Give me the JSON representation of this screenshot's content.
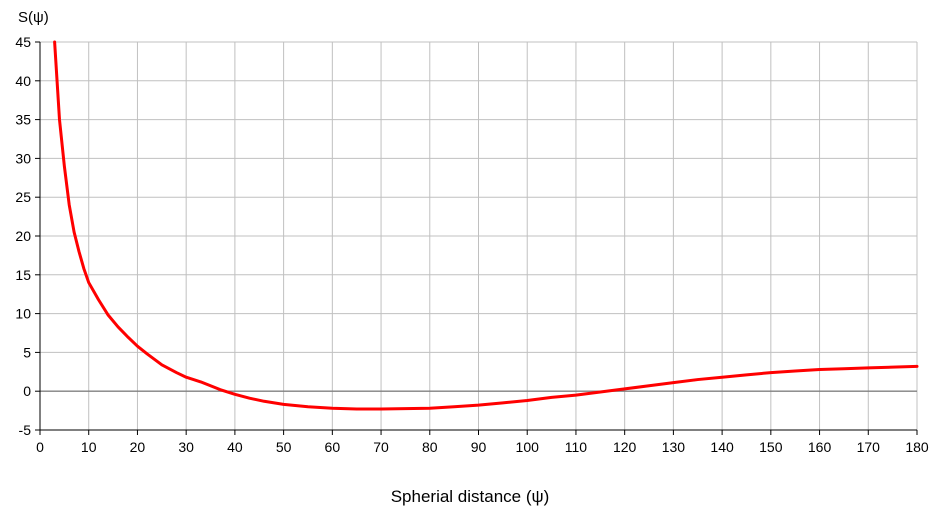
{
  "chart_data": {
    "type": "line",
    "title": "",
    "ylabel": "S(ψ)",
    "xlabel": "Spherial distance (ψ)",
    "xlim": [
      0,
      180
    ],
    "ylim": [
      -5,
      45
    ],
    "x_ticks": [
      0,
      10,
      20,
      30,
      40,
      50,
      60,
      70,
      80,
      90,
      100,
      110,
      120,
      130,
      140,
      150,
      160,
      170,
      180
    ],
    "y_ticks": [
      -5,
      0,
      5,
      10,
      15,
      20,
      25,
      30,
      35,
      40,
      45
    ],
    "x_tick_labels": [
      "0",
      "10",
      "20",
      "30",
      "40",
      "50",
      "60",
      "70",
      "80",
      "90",
      "100",
      "110",
      "120",
      "130",
      "140",
      "150",
      "160",
      "170",
      "180"
    ],
    "y_tick_labels": [
      "-5",
      "0",
      "5",
      "10",
      "15",
      "20",
      "25",
      "30",
      "35",
      "40",
      "45"
    ],
    "grid": true,
    "zero_line": true,
    "colors": {
      "series": "#ff0000",
      "grid": "#c0c0c0",
      "zero_line": "#808080",
      "axis": "#000000"
    },
    "series": [
      {
        "x": [
          3,
          4,
          5,
          6,
          7,
          8,
          9,
          10,
          12,
          14,
          16,
          18,
          20,
          22,
          25,
          28,
          30,
          33,
          35,
          37,
          40,
          43,
          46,
          50,
          55,
          60,
          65,
          70,
          75,
          80,
          85,
          90,
          95,
          100,
          105,
          110,
          115,
          120,
          125,
          130,
          135,
          140,
          145,
          150,
          155,
          160,
          165,
          170,
          175,
          180
        ],
        "y": [
          45,
          35,
          29,
          24,
          20.5,
          18,
          15.8,
          14,
          11.8,
          9.8,
          8.3,
          7,
          5.8,
          4.8,
          3.4,
          2.4,
          1.8,
          1.2,
          0.7,
          0.2,
          -0.4,
          -0.9,
          -1.3,
          -1.7,
          -2.0,
          -2.2,
          -2.3,
          -2.3,
          -2.25,
          -2.2,
          -2.0,
          -1.8,
          -1.5,
          -1.2,
          -0.8,
          -0.5,
          -0.1,
          0.3,
          0.7,
          1.1,
          1.5,
          1.8,
          2.1,
          2.4,
          2.6,
          2.8,
          2.9,
          3.0,
          3.1,
          3.2
        ]
      }
    ]
  }
}
